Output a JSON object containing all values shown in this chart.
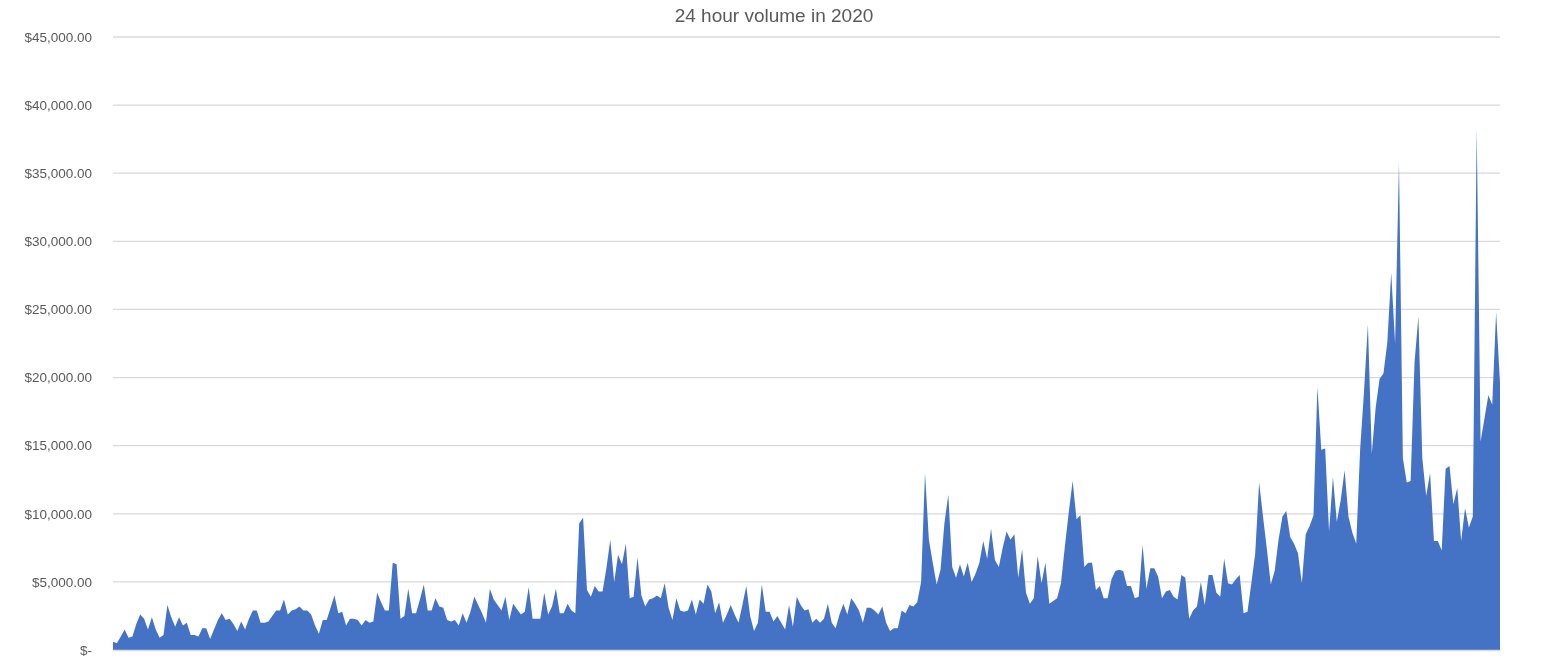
{
  "chart_data": {
    "type": "area",
    "title": "24 hour volume in 2020",
    "categories": [
      null,
      null,
      null,
      null,
      null,
      null,
      null,
      null,
      null,
      null,
      null,
      null,
      null,
      null,
      null,
      null,
      null,
      null,
      null,
      null,
      null,
      null,
      null,
      null,
      null,
      null,
      null,
      null,
      null,
      null,
      null,
      null,
      null,
      null,
      null,
      null,
      null,
      null,
      null,
      null,
      null,
      null,
      null,
      null,
      null,
      null,
      null,
      null,
      null,
      null,
      null,
      null,
      null,
      null,
      null,
      null,
      null,
      null,
      null,
      null,
      null,
      null,
      null,
      null,
      null,
      null,
      null,
      null,
      null,
      null,
      null,
      null,
      null,
      null,
      null,
      null,
      null,
      null,
      null,
      null,
      null,
      null,
      null,
      null,
      null,
      null,
      null,
      null,
      null,
      null,
      null,
      null,
      null,
      null,
      null,
      null,
      null,
      null,
      null,
      null,
      null,
      null,
      null,
      null,
      null,
      null,
      null,
      null,
      null,
      null,
      null,
      null,
      null,
      null,
      null,
      null,
      null,
      null,
      null,
      null,
      null,
      null,
      null,
      null,
      null,
      null,
      null,
      null,
      null,
      null,
      null,
      null,
      null,
      null,
      null,
      null,
      null,
      null,
      null,
      null,
      null,
      null,
      null,
      null,
      null,
      null,
      null,
      null,
      null,
      null,
      null,
      null,
      null,
      null,
      null,
      null,
      null,
      null,
      null,
      null,
      null,
      null,
      null,
      null,
      null,
      null,
      null,
      null,
      null,
      null,
      null,
      null,
      null,
      null,
      null,
      null,
      null,
      null,
      null,
      null,
      null,
      null,
      null,
      null,
      null,
      null,
      null,
      null,
      null,
      null,
      null,
      null,
      null,
      null,
      null,
      null,
      null,
      null,
      null,
      null,
      null,
      null,
      null,
      null,
      null,
      null,
      null,
      null,
      null,
      null,
      null,
      null,
      null,
      null,
      null,
      null,
      null,
      null,
      null,
      null,
      null,
      null,
      null,
      null,
      null,
      null,
      null,
      null,
      null,
      null,
      null,
      null,
      null,
      null,
      null,
      null,
      null,
      null,
      null,
      null,
      null,
      null,
      null,
      null,
      null,
      null,
      null,
      null,
      null,
      null,
      null,
      null,
      null,
      null,
      null,
      null,
      null,
      null,
      null,
      null,
      null,
      null,
      null,
      null,
      null,
      null,
      null,
      null,
      null,
      null,
      null,
      null,
      null,
      null,
      null,
      null,
      null,
      null,
      null,
      null,
      null,
      null,
      null,
      null,
      null,
      null,
      null,
      null,
      null,
      null,
      null,
      null,
      null,
      null,
      null,
      null,
      null,
      null,
      null,
      null,
      null,
      null,
      null,
      null,
      null,
      null,
      null,
      null,
      null,
      null,
      null,
      null,
      null,
      null,
      null,
      null,
      null,
      null,
      null,
      null,
      null,
      null,
      null,
      null,
      null,
      null,
      null,
      null,
      null,
      null,
      null,
      null,
      null,
      null,
      null,
      null,
      null,
      null,
      null,
      null,
      null,
      null,
      null,
      null,
      null,
      null,
      null,
      null,
      null,
      null,
      null,
      null,
      null,
      null,
      null,
      null,
      null,
      null
    ],
    "values": [
      600,
      500,
      1000,
      1500,
      900,
      1000,
      1900,
      2600,
      2300,
      1500,
      2400,
      1500,
      900,
      1100,
      3300,
      2400,
      1700,
      2400,
      1800,
      2000,
      1100,
      1100,
      1000,
      1600,
      1600,
      800,
      1500,
      2200,
      2700,
      2200,
      2300,
      1900,
      1400,
      2100,
      1500,
      2300,
      2900,
      2900,
      2000,
      2000,
      2100,
      2500,
      2900,
      2900,
      3700,
      2600,
      2900,
      3000,
      3200,
      2900,
      2900,
      2600,
      1800,
      1200,
      2200,
      2200,
      3100,
      4000,
      2700,
      2800,
      1800,
      2300,
      2300,
      2200,
      1800,
      2200,
      2000,
      2100,
      4200,
      3500,
      2900,
      2900,
      6400,
      6300,
      2300,
      2500,
      4500,
      2700,
      2700,
      3700,
      4800,
      2900,
      2900,
      3800,
      3200,
      3100,
      2200,
      2100,
      2200,
      1800,
      2700,
      2000,
      2800,
      3900,
      3300,
      2700,
      2000,
      4500,
      3700,
      3300,
      2900,
      3900,
      2200,
      3400,
      3000,
      2600,
      2800,
      4600,
      2300,
      2300,
      2300,
      4200,
      2600,
      3200,
      4500,
      2700,
      2700,
      3400,
      2900,
      2700,
      9300,
      9700,
      4400,
      3900,
      4700,
      4300,
      4300,
      6000,
      8100,
      5000,
      7000,
      6300,
      7800,
      3800,
      3900,
      6800,
      4000,
      3200,
      3700,
      3800,
      4000,
      3800,
      4900,
      3100,
      2200,
      3800,
      2900,
      2800,
      2900,
      3700,
      2600,
      3700,
      3400,
      4800,
      4300,
      2700,
      3500,
      2000,
      2600,
      3300,
      2600,
      2000,
      3300,
      4700,
      2500,
      1400,
      2000,
      4800,
      2800,
      2800,
      2100,
      2500,
      2000,
      1500,
      3300,
      1700,
      3900,
      3300,
      2900,
      3000,
      2000,
      2300,
      2000,
      2300,
      3400,
      2000,
      1600,
      2600,
      3400,
      2600,
      3800,
      3400,
      2900,
      2000,
      3100,
      3100,
      2900,
      2600,
      3200,
      2000,
      1400,
      1600,
      1600,
      2900,
      2700,
      3300,
      3200,
      3500,
      5000,
      13000,
      8100,
      6400,
      4800,
      5900,
      9300,
      11400,
      6100,
      5300,
      6300,
      5400,
      6400,
      5000,
      5600,
      6400,
      8000,
      6700,
      8900,
      6600,
      6100,
      7500,
      8700,
      8100,
      8500,
      5300,
      7400,
      4200,
      3400,
      3800,
      6900,
      4900,
      6400,
      3400,
      3600,
      3800,
      4900,
      7600,
      10100,
      12400,
      9600,
      9900,
      6100,
      6400,
      6400,
      4400,
      4700,
      3800,
      3800,
      5200,
      5800,
      5900,
      5800,
      4700,
      4700,
      3800,
      3900,
      7700,
      4500,
      6000,
      6000,
      5400,
      3800,
      4300,
      4400,
      3900,
      3700,
      5500,
      5300,
      2300,
      2900,
      3200,
      5000,
      3300,
      5500,
      5500,
      4200,
      3900,
      6700,
      4900,
      4800,
      5200,
      5500,
      2700,
      2800,
      4900,
      7100,
      12300,
      9800,
      7400,
      4800,
      5800,
      8100,
      9800,
      10200,
      8300,
      7800,
      7100,
      4900,
      8500,
      9100,
      9900,
      19300,
      14700,
      14800,
      8700,
      12700,
      9400,
      11000,
      13200,
      9800,
      8600,
      7800,
      14700,
      19000,
      23900,
      14400,
      17800,
      19900,
      20300,
      22600,
      27700,
      22500,
      35800,
      14100,
      12300,
      12400,
      21100,
      24500,
      14100,
      11300,
      13000,
      8000,
      8000,
      7300,
      13300,
      13500,
      10700,
      11900,
      8000,
      10400,
      9000,
      9800,
      38300,
      15300,
      17000,
      18700,
      18000,
      24800,
      19600
    ],
    "color": "#4472c4",
    "ylim": [
      0,
      45000
    ],
    "yticks": [
      {
        "value": 0,
        "label": "$-"
      },
      {
        "value": 5000,
        "label": "$5,000.00"
      },
      {
        "value": 10000,
        "label": "$10,000.00"
      },
      {
        "value": 15000,
        "label": "$15,000.00"
      },
      {
        "value": 20000,
        "label": "$20,000.00"
      },
      {
        "value": 25000,
        "label": "$25,000.00"
      },
      {
        "value": 30000,
        "label": "$30,000.00"
      },
      {
        "value": 35000,
        "label": "$35,000.00"
      },
      {
        "value": 40000,
        "label": "$40,000.00"
      },
      {
        "value": 45000,
        "label": "$45,000.00"
      }
    ],
    "grid": "y",
    "tick_labels": "y"
  }
}
